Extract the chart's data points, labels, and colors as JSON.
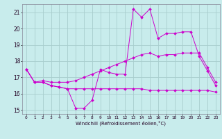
{
  "xlabel": "Windchill (Refroidissement éolien,°C)",
  "bg_color": "#c8ecec",
  "grid_color": "#a8cece",
  "line_color": "#cc00cc",
  "xlim": [
    -0.5,
    23.5
  ],
  "ylim": [
    14.75,
    21.5
  ],
  "yticks": [
    15,
    16,
    17,
    18,
    19,
    20,
    21
  ],
  "xticks": [
    0,
    1,
    2,
    3,
    4,
    5,
    6,
    7,
    8,
    9,
    10,
    11,
    12,
    13,
    14,
    15,
    16,
    17,
    18,
    19,
    20,
    21,
    22,
    23
  ],
  "series": [
    {
      "x": [
        0,
        1,
        2,
        3,
        4,
        5,
        6,
        7,
        8,
        9,
        10,
        11,
        12,
        13,
        14,
        15,
        16,
        17,
        18,
        19,
        20,
        21,
        22,
        23
      ],
      "y": [
        17.5,
        16.7,
        16.7,
        16.5,
        16.4,
        16.3,
        15.1,
        15.1,
        15.6,
        17.5,
        17.3,
        17.2,
        17.2,
        21.2,
        20.7,
        21.2,
        19.4,
        19.7,
        19.7,
        19.8,
        19.8,
        18.3,
        17.4,
        16.5
      ]
    },
    {
      "x": [
        0,
        1,
        2,
        3,
        4,
        5,
        6,
        7,
        8,
        9,
        10,
        11,
        12,
        13,
        14,
        15,
        16,
        17,
        18,
        19,
        20,
        21,
        22,
        23
      ],
      "y": [
        17.5,
        16.7,
        16.7,
        16.5,
        16.4,
        16.3,
        16.3,
        16.3,
        16.3,
        16.3,
        16.3,
        16.3,
        16.3,
        16.3,
        16.3,
        16.2,
        16.2,
        16.2,
        16.2,
        16.2,
        16.2,
        16.2,
        16.2,
        16.1
      ]
    },
    {
      "x": [
        0,
        1,
        2,
        3,
        4,
        5,
        6,
        7,
        8,
        9,
        10,
        11,
        12,
        13,
        14,
        15,
        16,
        17,
        18,
        19,
        20,
        21,
        22,
        23
      ],
      "y": [
        17.5,
        16.7,
        16.8,
        16.7,
        16.7,
        16.7,
        16.8,
        17.0,
        17.2,
        17.4,
        17.6,
        17.8,
        18.0,
        18.2,
        18.4,
        18.5,
        18.3,
        18.4,
        18.4,
        18.5,
        18.5,
        18.5,
        17.6,
        16.7
      ]
    }
  ]
}
